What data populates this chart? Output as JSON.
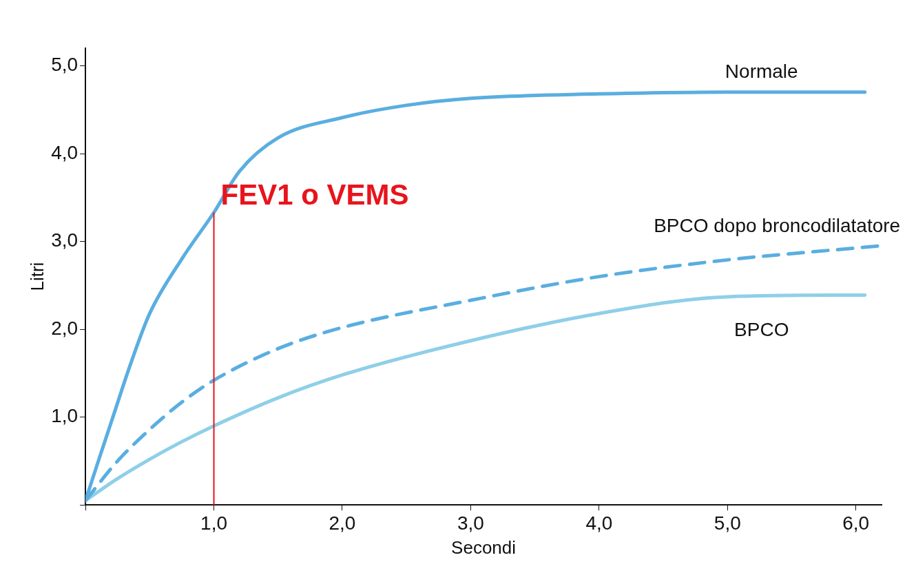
{
  "chart_data": {
    "type": "line",
    "xlabel": "Secondi",
    "ylabel": "Litri",
    "xlim": [
      0,
      6.2
    ],
    "xticks": [
      {
        "value": 0,
        "label": null
      },
      {
        "value": 1,
        "label": "1,0"
      },
      {
        "value": 2,
        "label": "2,0"
      },
      {
        "value": 3,
        "label": "3,0"
      },
      {
        "value": 4,
        "label": "4,0"
      },
      {
        "value": 5,
        "label": "5,0"
      },
      {
        "value": 6,
        "label": "6,0"
      }
    ],
    "ylim": [
      0,
      5.2
    ],
    "yticks": [
      {
        "value": 0,
        "label": null
      },
      {
        "value": 1,
        "label": "1,0"
      },
      {
        "value": 2,
        "label": "2,0"
      },
      {
        "value": 3,
        "label": "3,0"
      },
      {
        "value": 4,
        "label": "4,0"
      },
      {
        "value": 5,
        "label": "5,0"
      }
    ],
    "grid": false,
    "legend": false,
    "marker": "none",
    "series": [
      {
        "name": "Normale",
        "color": "#5aaee0",
        "line_style": "solid",
        "x": [
          0,
          0.1,
          0.2,
          0.35,
          0.5,
          0.75,
          1,
          1.2,
          1.5,
          2,
          2.5,
          3,
          4,
          5,
          6.07
        ],
        "values": [
          0.05,
          0.5,
          0.94,
          1.6,
          2.18,
          2.8,
          3.33,
          3.8,
          4.18,
          4.41,
          4.55,
          4.63,
          4.68,
          4.7,
          4.7
        ]
      },
      {
        "name": "BPCO dopo broncodilatatore",
        "color": "#5aaee0",
        "line_style": "dashed",
        "x": [
          0,
          0.25,
          0.5,
          0.75,
          1,
          1.5,
          2,
          3,
          4,
          5,
          6.19
        ],
        "values": [
          0.05,
          0.5,
          0.86,
          1.17,
          1.42,
          1.78,
          2.02,
          2.33,
          2.6,
          2.79,
          2.95
        ]
      },
      {
        "name": "BPCO",
        "color": "#8fcfe8",
        "line_style": "solid",
        "x": [
          0,
          0.25,
          0.5,
          0.75,
          1,
          1.5,
          2,
          3,
          4,
          5,
          6.07
        ],
        "values": [
          0.05,
          0.3,
          0.52,
          0.72,
          0.9,
          1.22,
          1.48,
          1.87,
          2.18,
          2.37,
          2.39
        ]
      }
    ],
    "ref_lines": [
      {
        "axis": "x",
        "value": 1,
        "label": "FEV1 o VEMS",
        "color": "#e8141c"
      }
    ]
  }
}
